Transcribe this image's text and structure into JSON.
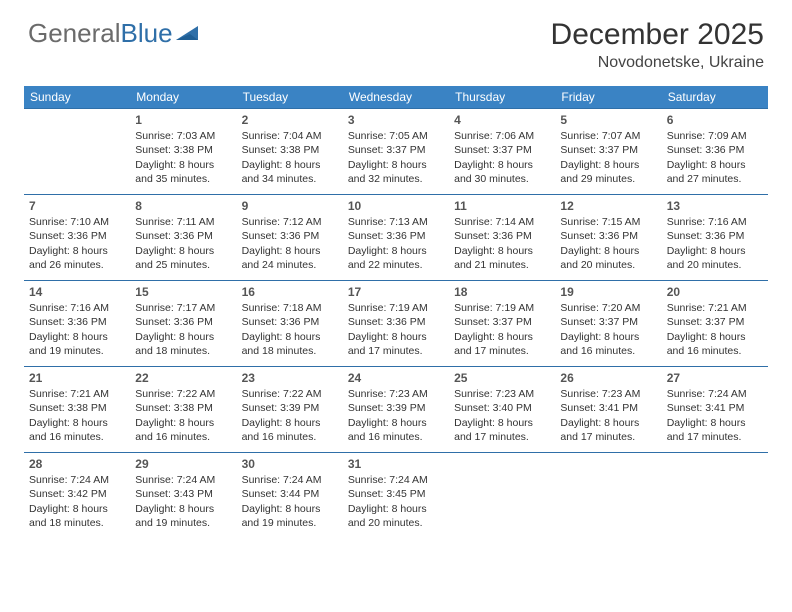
{
  "brand": {
    "part1": "General",
    "part2": "Blue"
  },
  "title": "December 2025",
  "location": "Novodonetske, Ukraine",
  "colors": {
    "header_bg": "#3a83c4",
    "border": "#2f6fa8",
    "text": "#333333",
    "brand_gray": "#6b6b6b",
    "brand_blue": "#2f6fa8",
    "background": "#ffffff"
  },
  "dayHeaders": [
    "Sunday",
    "Monday",
    "Tuesday",
    "Wednesday",
    "Thursday",
    "Friday",
    "Saturday"
  ],
  "weeks": [
    [
      null,
      {
        "n": "1",
        "sr": "7:03 AM",
        "ss": "3:38 PM",
        "dl1": "8 hours",
        "dl2": "35 minutes."
      },
      {
        "n": "2",
        "sr": "7:04 AM",
        "ss": "3:38 PM",
        "dl1": "8 hours",
        "dl2": "34 minutes."
      },
      {
        "n": "3",
        "sr": "7:05 AM",
        "ss": "3:37 PM",
        "dl1": "8 hours",
        "dl2": "32 minutes."
      },
      {
        "n": "4",
        "sr": "7:06 AM",
        "ss": "3:37 PM",
        "dl1": "8 hours",
        "dl2": "30 minutes."
      },
      {
        "n": "5",
        "sr": "7:07 AM",
        "ss": "3:37 PM",
        "dl1": "8 hours",
        "dl2": "29 minutes."
      },
      {
        "n": "6",
        "sr": "7:09 AM",
        "ss": "3:36 PM",
        "dl1": "8 hours",
        "dl2": "27 minutes."
      }
    ],
    [
      {
        "n": "7",
        "sr": "7:10 AM",
        "ss": "3:36 PM",
        "dl1": "8 hours",
        "dl2": "26 minutes."
      },
      {
        "n": "8",
        "sr": "7:11 AM",
        "ss": "3:36 PM",
        "dl1": "8 hours",
        "dl2": "25 minutes."
      },
      {
        "n": "9",
        "sr": "7:12 AM",
        "ss": "3:36 PM",
        "dl1": "8 hours",
        "dl2": "24 minutes."
      },
      {
        "n": "10",
        "sr": "7:13 AM",
        "ss": "3:36 PM",
        "dl1": "8 hours",
        "dl2": "22 minutes."
      },
      {
        "n": "11",
        "sr": "7:14 AM",
        "ss": "3:36 PM",
        "dl1": "8 hours",
        "dl2": "21 minutes."
      },
      {
        "n": "12",
        "sr": "7:15 AM",
        "ss": "3:36 PM",
        "dl1": "8 hours",
        "dl2": "20 minutes."
      },
      {
        "n": "13",
        "sr": "7:16 AM",
        "ss": "3:36 PM",
        "dl1": "8 hours",
        "dl2": "20 minutes."
      }
    ],
    [
      {
        "n": "14",
        "sr": "7:16 AM",
        "ss": "3:36 PM",
        "dl1": "8 hours",
        "dl2": "19 minutes."
      },
      {
        "n": "15",
        "sr": "7:17 AM",
        "ss": "3:36 PM",
        "dl1": "8 hours",
        "dl2": "18 minutes."
      },
      {
        "n": "16",
        "sr": "7:18 AM",
        "ss": "3:36 PM",
        "dl1": "8 hours",
        "dl2": "18 minutes."
      },
      {
        "n": "17",
        "sr": "7:19 AM",
        "ss": "3:36 PM",
        "dl1": "8 hours",
        "dl2": "17 minutes."
      },
      {
        "n": "18",
        "sr": "7:19 AM",
        "ss": "3:37 PM",
        "dl1": "8 hours",
        "dl2": "17 minutes."
      },
      {
        "n": "19",
        "sr": "7:20 AM",
        "ss": "3:37 PM",
        "dl1": "8 hours",
        "dl2": "16 minutes."
      },
      {
        "n": "20",
        "sr": "7:21 AM",
        "ss": "3:37 PM",
        "dl1": "8 hours",
        "dl2": "16 minutes."
      }
    ],
    [
      {
        "n": "21",
        "sr": "7:21 AM",
        "ss": "3:38 PM",
        "dl1": "8 hours",
        "dl2": "16 minutes."
      },
      {
        "n": "22",
        "sr": "7:22 AM",
        "ss": "3:38 PM",
        "dl1": "8 hours",
        "dl2": "16 minutes."
      },
      {
        "n": "23",
        "sr": "7:22 AM",
        "ss": "3:39 PM",
        "dl1": "8 hours",
        "dl2": "16 minutes."
      },
      {
        "n": "24",
        "sr": "7:23 AM",
        "ss": "3:39 PM",
        "dl1": "8 hours",
        "dl2": "16 minutes."
      },
      {
        "n": "25",
        "sr": "7:23 AM",
        "ss": "3:40 PM",
        "dl1": "8 hours",
        "dl2": "17 minutes."
      },
      {
        "n": "26",
        "sr": "7:23 AM",
        "ss": "3:41 PM",
        "dl1": "8 hours",
        "dl2": "17 minutes."
      },
      {
        "n": "27",
        "sr": "7:24 AM",
        "ss": "3:41 PM",
        "dl1": "8 hours",
        "dl2": "17 minutes."
      }
    ],
    [
      {
        "n": "28",
        "sr": "7:24 AM",
        "ss": "3:42 PM",
        "dl1": "8 hours",
        "dl2": "18 minutes."
      },
      {
        "n": "29",
        "sr": "7:24 AM",
        "ss": "3:43 PM",
        "dl1": "8 hours",
        "dl2": "19 minutes."
      },
      {
        "n": "30",
        "sr": "7:24 AM",
        "ss": "3:44 PM",
        "dl1": "8 hours",
        "dl2": "19 minutes."
      },
      {
        "n": "31",
        "sr": "7:24 AM",
        "ss": "3:45 PM",
        "dl1": "8 hours",
        "dl2": "20 minutes."
      },
      null,
      null,
      null
    ]
  ],
  "labels": {
    "sunrise": "Sunrise:",
    "sunset": "Sunset:",
    "daylight": "Daylight:",
    "and": "and"
  }
}
